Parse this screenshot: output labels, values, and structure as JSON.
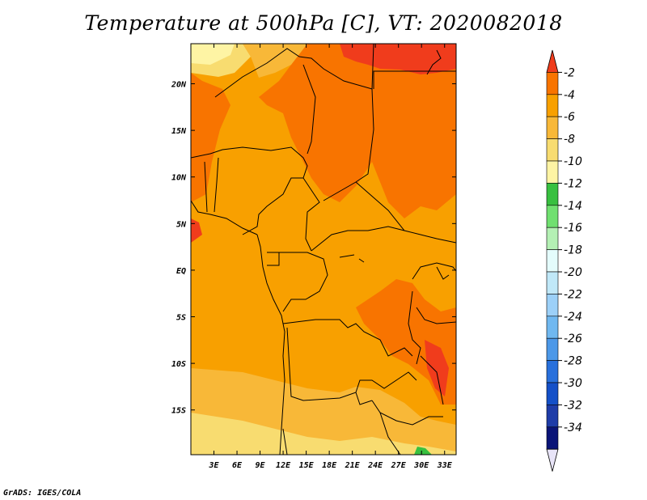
{
  "title": "Temperature at 500hPa [C], VT: 2020082018",
  "credit": "GrADS: IGES/COLA",
  "map": {
    "lat_labels": [
      "20N",
      "15N",
      "10N",
      "5N",
      "EQ",
      "5S",
      "10S",
      "15S"
    ],
    "lat_values": [
      20,
      15,
      10,
      5,
      0,
      -5,
      -10,
      -15
    ],
    "lon_labels": [
      "3E",
      "6E",
      "9E",
      "12E",
      "15E",
      "18E",
      "21E",
      "24E",
      "27E",
      "30E",
      "33E"
    ],
    "lon_values": [
      3,
      6,
      9,
      12,
      15,
      18,
      21,
      24,
      27,
      30,
      33
    ],
    "lon_range": [
      0,
      34.5
    ],
    "lat_range": [
      -19.8,
      24.3
    ]
  },
  "colorbar": {
    "labels": [
      "-2",
      "-4",
      "-6",
      "-8",
      "-10",
      "-12",
      "-14",
      "-16",
      "-18",
      "-20",
      "-22",
      "-24",
      "-26",
      "-28",
      "-30",
      "-32",
      "-34"
    ],
    "colors": [
      "#f03c1c",
      "#f87400",
      "#f8a000",
      "#f8b838",
      "#f8dc70",
      "#fef4a4",
      "#38c040",
      "#70e070",
      "#b4f0b4",
      "#e4fcfc",
      "#c0e8f8",
      "#9cd0f8",
      "#70b8f0",
      "#4c98e8",
      "#2870dc",
      "#1450c8",
      "#1e3ca8",
      "#0a1478",
      "#e8e4f8"
    ]
  }
}
